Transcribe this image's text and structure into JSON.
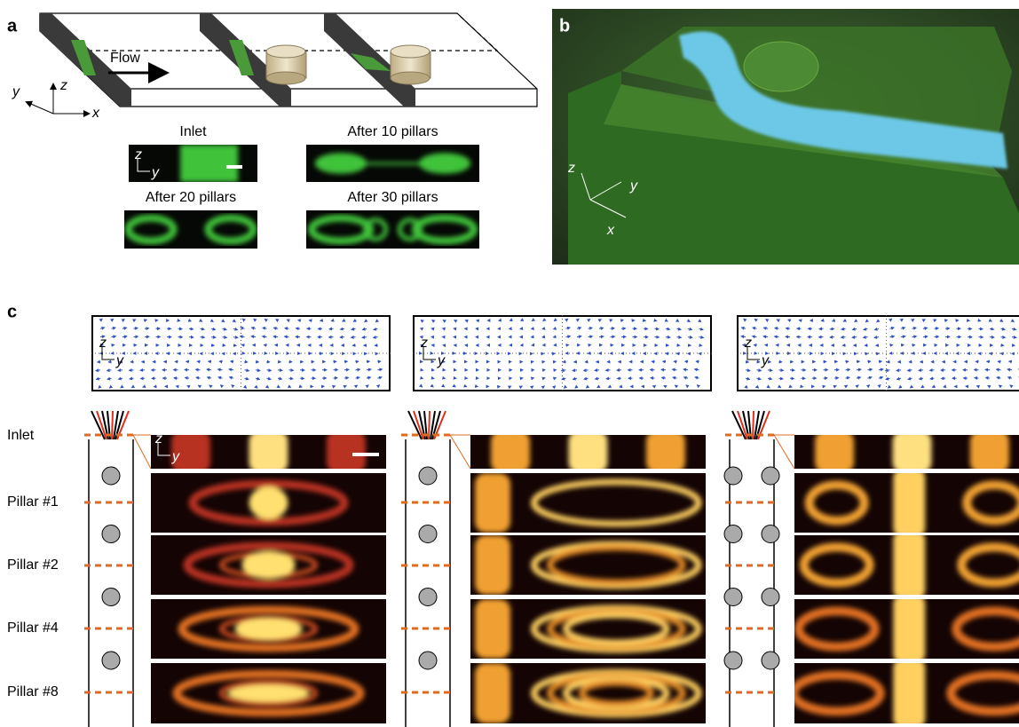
{
  "panels": {
    "a": {
      "label": "a",
      "flow": "Flow",
      "axes": [
        "y",
        "z",
        "x"
      ],
      "images": [
        {
          "title": "Inlet"
        },
        {
          "title": "After 10 pillars"
        },
        {
          "title": "After 20 pillars"
        },
        {
          "title": "After 30 pillars"
        }
      ],
      "inset_axes": [
        "z",
        "y"
      ]
    },
    "b": {
      "label": "b",
      "axes": [
        "z",
        "y",
        "x"
      ]
    },
    "c": {
      "label": "c",
      "vector_axes": [
        "z",
        "y"
      ],
      "heatmap_axes": [
        "z",
        "y"
      ],
      "rows": [
        "Inlet",
        "Pillar #1",
        "Pillar #2",
        "Pillar #4",
        "Pillar #8"
      ]
    }
  }
}
